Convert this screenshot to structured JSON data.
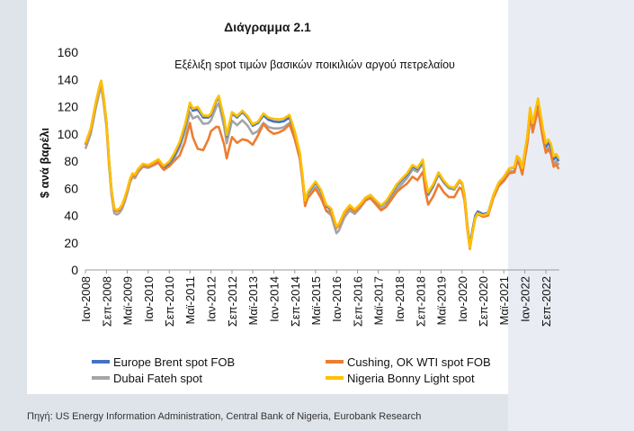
{
  "heading": "Διάγραμμα 2.1",
  "source": "Πηγή: US Energy Information Administration, Central Bank of Nigeria, Eurobank Research",
  "colors": {
    "brent": "#4472c4",
    "wti": "#ed7d31",
    "dubai": "#a5a5a5",
    "bonny": "#ffc000"
  },
  "chart_data": {
    "type": "line",
    "title": "Εξέλιξη spot τιμών βασικών ποικιλιών αργού πετρελαίου",
    "ylabel": "$ ανά βαρέλι",
    "xlabel": "",
    "ylim": [
      0,
      160
    ],
    "yticks": [
      0,
      20,
      40,
      60,
      80,
      100,
      120,
      140,
      160
    ],
    "xlim": [
      2008.0,
      2023.1
    ],
    "xticks": [
      {
        "label": "Ιαν-2008",
        "x": 2008.0
      },
      {
        "label": "Σεπ-2008",
        "x": 2008.67
      },
      {
        "label": "Μαϊ-2009",
        "x": 2009.33
      },
      {
        "label": "Ιαν-2010",
        "x": 2010.0
      },
      {
        "label": "Σεπ-2010",
        "x": 2010.67
      },
      {
        "label": "Μαϊ-2011",
        "x": 2011.33
      },
      {
        "label": "Ιαν-2012",
        "x": 2012.0
      },
      {
        "label": "Σεπ-2012",
        "x": 2012.67
      },
      {
        "label": "Μαϊ-2013",
        "x": 2013.33
      },
      {
        "label": "Ιαν-2014",
        "x": 2014.0
      },
      {
        "label": "Σεπ-2014",
        "x": 2014.67
      },
      {
        "label": "Μαϊ-2015",
        "x": 2015.33
      },
      {
        "label": "Ιαν-2016",
        "x": 2016.0
      },
      {
        "label": "Σεπ-2016",
        "x": 2016.67
      },
      {
        "label": "Μαϊ-2017",
        "x": 2017.33
      },
      {
        "label": "Ιαν-2018",
        "x": 2018.0
      },
      {
        "label": "Σεπ-2018",
        "x": 2018.67
      },
      {
        "label": "Μαϊ-2019",
        "x": 2019.33
      },
      {
        "label": "Ιαν-2020",
        "x": 2020.0
      },
      {
        "label": "Σεπ-2020",
        "x": 2020.67
      },
      {
        "label": "Μαϊ-2021",
        "x": 2021.33
      },
      {
        "label": "Ιαν-2022",
        "x": 2022.0
      },
      {
        "label": "Σεπ-2022",
        "x": 2022.67
      }
    ],
    "legend": [
      "Europe Brent spot FOB",
      "Cushing, OK WTI spot FOB",
      "Dubai Fateh spot",
      "Nigeria Bonny Light spot"
    ],
    "legend_position": "bottom",
    "base": [
      [
        2008.0,
        92
      ],
      [
        2008.17,
        103
      ],
      [
        2008.33,
        122
      ],
      [
        2008.45,
        134
      ],
      [
        2008.5,
        138
      ],
      [
        2008.58,
        126
      ],
      [
        2008.67,
        108
      ],
      [
        2008.75,
        80
      ],
      [
        2008.83,
        58
      ],
      [
        2008.92,
        44
      ],
      [
        2009.0,
        43
      ],
      [
        2009.08,
        44
      ],
      [
        2009.17,
        47
      ],
      [
        2009.25,
        52
      ],
      [
        2009.33,
        58
      ],
      [
        2009.42,
        66
      ],
      [
        2009.5,
        70
      ],
      [
        2009.58,
        69
      ],
      [
        2009.67,
        73
      ],
      [
        2009.83,
        77
      ],
      [
        2010.0,
        76
      ],
      [
        2010.17,
        78
      ],
      [
        2010.33,
        80
      ],
      [
        2010.42,
        77
      ],
      [
        2010.5,
        75
      ],
      [
        2010.67,
        78
      ],
      [
        2010.83,
        84
      ],
      [
        2011.0,
        92
      ],
      [
        2011.17,
        104
      ],
      [
        2011.33,
        120
      ],
      [
        2011.42,
        115
      ],
      [
        2011.58,
        116
      ],
      [
        2011.75,
        110
      ],
      [
        2011.92,
        110
      ],
      [
        2012.0,
        112
      ],
      [
        2012.17,
        122
      ],
      [
        2012.25,
        125
      ],
      [
        2012.42,
        108
      ],
      [
        2012.5,
        96
      ],
      [
        2012.58,
        104
      ],
      [
        2012.67,
        113
      ],
      [
        2012.83,
        110
      ],
      [
        2013.0,
        114
      ],
      [
        2013.17,
        110
      ],
      [
        2013.33,
        104
      ],
      [
        2013.5,
        106
      ],
      [
        2013.67,
        112
      ],
      [
        2013.83,
        109
      ],
      [
        2014.0,
        108
      ],
      [
        2014.17,
        108
      ],
      [
        2014.33,
        109
      ],
      [
        2014.5,
        112
      ],
      [
        2014.67,
        100
      ],
      [
        2014.83,
        85
      ],
      [
        2014.92,
        68
      ],
      [
        2015.0,
        50
      ],
      [
        2015.08,
        56
      ],
      [
        2015.33,
        64
      ],
      [
        2015.5,
        58
      ],
      [
        2015.67,
        47
      ],
      [
        2015.83,
        44
      ],
      [
        2015.92,
        37
      ],
      [
        2016.0,
        31
      ],
      [
        2016.08,
        33
      ],
      [
        2016.25,
        42
      ],
      [
        2016.42,
        47
      ],
      [
        2016.58,
        44
      ],
      [
        2016.75,
        48
      ],
      [
        2016.92,
        53
      ],
      [
        2017.08,
        55
      ],
      [
        2017.25,
        51
      ],
      [
        2017.42,
        47
      ],
      [
        2017.58,
        50
      ],
      [
        2017.75,
        56
      ],
      [
        2017.92,
        62
      ],
      [
        2018.08,
        66
      ],
      [
        2018.25,
        70
      ],
      [
        2018.42,
        76
      ],
      [
        2018.58,
        74
      ],
      [
        2018.75,
        80
      ],
      [
        2018.83,
        66
      ],
      [
        2018.92,
        56
      ],
      [
        2019.08,
        62
      ],
      [
        2019.25,
        71
      ],
      [
        2019.42,
        65
      ],
      [
        2019.58,
        61
      ],
      [
        2019.75,
        60
      ],
      [
        2019.92,
        66
      ],
      [
        2020.0,
        64
      ],
      [
        2020.08,
        55
      ],
      [
        2020.17,
        33
      ],
      [
        2020.25,
        18
      ],
      [
        2020.33,
        29
      ],
      [
        2020.42,
        40
      ],
      [
        2020.5,
        43
      ],
      [
        2020.67,
        41
      ],
      [
        2020.83,
        42
      ],
      [
        2021.0,
        55
      ],
      [
        2021.17,
        64
      ],
      [
        2021.33,
        68
      ],
      [
        2021.5,
        74
      ],
      [
        2021.67,
        75
      ],
      [
        2021.75,
        83
      ],
      [
        2021.83,
        81
      ],
      [
        2021.92,
        74
      ],
      [
        2022.0,
        86
      ],
      [
        2022.08,
        97
      ],
      [
        2022.17,
        117
      ],
      [
        2022.25,
        105
      ],
      [
        2022.33,
        113
      ],
      [
        2022.42,
        122
      ],
      [
        2022.5,
        111
      ],
      [
        2022.58,
        100
      ],
      [
        2022.67,
        90
      ],
      [
        2022.75,
        93
      ],
      [
        2022.83,
        90
      ],
      [
        2022.92,
        81
      ],
      [
        2023.0,
        83
      ],
      [
        2023.08,
        80
      ]
    ],
    "series": [
      {
        "name": "Europe Brent spot FOB",
        "offsets": [
          [
            2008.0,
            0
          ],
          [
            2008.5,
            1
          ],
          [
            2010.0,
            0
          ],
          [
            2011.0,
            0
          ],
          [
            2011.33,
            2
          ],
          [
            2011.5,
            2
          ],
          [
            2013.5,
            2
          ],
          [
            2014.5,
            0
          ],
          [
            2019.0,
            0
          ],
          [
            2021.0,
            0
          ],
          [
            2022.3,
            1
          ],
          [
            2023.1,
            0
          ]
        ]
      },
      {
        "name": "Cushing, OK WTI spot FOB",
        "offsets": [
          [
            2008.0,
            0
          ],
          [
            2008.5,
            0
          ],
          [
            2010.0,
            0
          ],
          [
            2010.75,
            -2
          ],
          [
            2011.0,
            -8
          ],
          [
            2011.33,
            -12
          ],
          [
            2011.58,
            -27
          ],
          [
            2011.75,
            -22
          ],
          [
            2012.0,
            -10
          ],
          [
            2012.25,
            -20
          ],
          [
            2012.5,
            -14
          ],
          [
            2013.0,
            -18
          ],
          [
            2013.33,
            -12
          ],
          [
            2013.6,
            -4
          ],
          [
            2014.0,
            -8
          ],
          [
            2014.5,
            -5
          ],
          [
            2014.9,
            -2
          ],
          [
            2015.0,
            -3
          ],
          [
            2015.5,
            -5
          ],
          [
            2016.0,
            0
          ],
          [
            2017.0,
            -2
          ],
          [
            2018.0,
            -5
          ],
          [
            2018.5,
            -8
          ],
          [
            2019.0,
            -8
          ],
          [
            2019.5,
            -8
          ],
          [
            2020.0,
            -5
          ],
          [
            2020.3,
            -2
          ],
          [
            2021.0,
            -2
          ],
          [
            2022.0,
            -4
          ],
          [
            2022.42,
            -4
          ],
          [
            2022.67,
            -4
          ],
          [
            2023.1,
            -6
          ]
        ]
      },
      {
        "name": "Dubai Fateh spot",
        "offsets": [
          [
            2008.0,
            -3
          ],
          [
            2008.5,
            -3
          ],
          [
            2010.0,
            -1
          ],
          [
            2011.0,
            -2
          ],
          [
            2011.33,
            -4
          ],
          [
            2011.58,
            -3
          ],
          [
            2012.0,
            -2
          ],
          [
            2013.0,
            -4
          ],
          [
            2014.0,
            -4
          ],
          [
            2014.7,
            -4
          ],
          [
            2015.0,
            -3
          ],
          [
            2016.0,
            -4
          ],
          [
            2017.0,
            -2
          ],
          [
            2018.0,
            -3
          ],
          [
            2019.0,
            -1
          ],
          [
            2020.0,
            -1
          ],
          [
            2021.0,
            -1
          ],
          [
            2022.3,
            -3
          ],
          [
            2023.1,
            -3
          ]
        ]
      },
      {
        "name": "Nigeria Bonny Light spot",
        "offsets": [
          [
            2008.0,
            1
          ],
          [
            2008.5,
            1
          ],
          [
            2010.0,
            1
          ],
          [
            2011.0,
            2
          ],
          [
            2011.33,
            3
          ],
          [
            2011.5,
            4
          ],
          [
            2012.0,
            3
          ],
          [
            2013.0,
            3
          ],
          [
            2014.0,
            3
          ],
          [
            2014.5,
            2
          ],
          [
            2015.0,
            1
          ],
          [
            2016.0,
            1
          ],
          [
            2017.0,
            0
          ],
          [
            2018.0,
            1
          ],
          [
            2019.0,
            1
          ],
          [
            2020.0,
            0
          ],
          [
            2020.3,
            -2
          ],
          [
            2021.0,
            0
          ],
          [
            2022.0,
            1
          ],
          [
            2022.42,
            4
          ],
          [
            2022.67,
            3
          ],
          [
            2023.1,
            2
          ]
        ]
      }
    ]
  }
}
